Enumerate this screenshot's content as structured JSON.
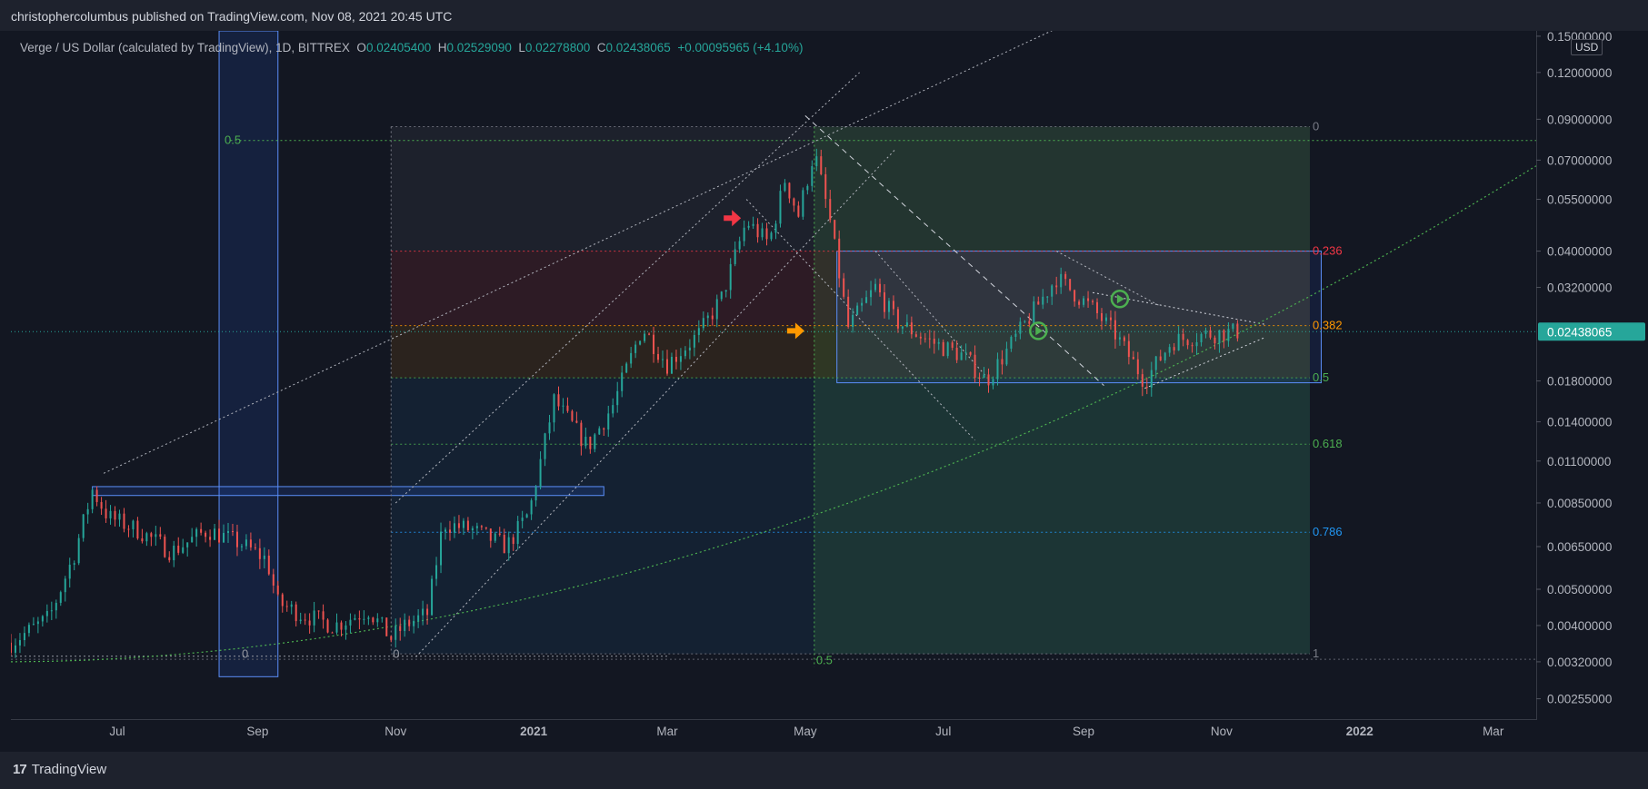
{
  "header": {
    "published": "christophercolumbus published on TradingView.com, Nov 08, 2021 20:45 UTC"
  },
  "legend": {
    "symbol": "Verge / US Dollar (calculated by TradingView), 1D, BITTREX",
    "open_label": "O",
    "open": "0.02405400",
    "high_label": "H",
    "high": "0.02529090",
    "low_label": "L",
    "low": "0.02278800",
    "close_label": "C",
    "close": "0.02438065",
    "change": "+0.00095965 (+4.10%)"
  },
  "currency_label": "USD",
  "footer": {
    "brand": "TradingView",
    "logo_mark": "17"
  },
  "colors": {
    "background": "#131722",
    "up": "#26a69a",
    "down": "#ef5350",
    "fib_green": "#4caf50",
    "fib_red": "#f23645",
    "fib_orange": "#ff9800",
    "fib_blue": "#2196f3",
    "box_blue": "#5b8ff9"
  },
  "chart_data": {
    "type": "candlestick",
    "scale": "log",
    "x_range": [
      "2020-05-15",
      "2022-03-20"
    ],
    "ylim": [
      0.00225,
      0.155
    ],
    "y_ticks": [
      "0.15000000",
      "0.12000000",
      "0.09000000",
      "0.07000000",
      "0.05500000",
      "0.04000000",
      "0.03200000",
      "0.02438065",
      "0.01800000",
      "0.01400000",
      "0.01100000",
      "0.00850000",
      "0.00650000",
      "0.00500000",
      "0.00400000",
      "0.00320000",
      "0.00255000"
    ],
    "y_tick_values": [
      0.15,
      0.12,
      0.09,
      0.07,
      0.055,
      0.04,
      0.032,
      0.02438065,
      0.018,
      0.014,
      0.011,
      0.0085,
      0.0065,
      0.005,
      0.004,
      0.0032,
      0.00255
    ],
    "x_ticks": [
      {
        "label": "Jul",
        "date": "2020-07-01",
        "bold": false
      },
      {
        "label": "Sep",
        "date": "2020-09-01",
        "bold": false
      },
      {
        "label": "Nov",
        "date": "2020-11-01",
        "bold": false
      },
      {
        "label": "2021",
        "date": "2021-01-01",
        "bold": true
      },
      {
        "label": "Mar",
        "date": "2021-03-01",
        "bold": false
      },
      {
        "label": "May",
        "date": "2021-05-01",
        "bold": false
      },
      {
        "label": "Jul",
        "date": "2021-07-01",
        "bold": false
      },
      {
        "label": "Sep",
        "date": "2021-09-01",
        "bold": false
      },
      {
        "label": "Nov",
        "date": "2021-11-01",
        "bold": false
      },
      {
        "label": "2022",
        "date": "2022-01-01",
        "bold": true
      },
      {
        "label": "Mar",
        "date": "2022-03-01",
        "bold": false
      }
    ],
    "last_price": "0.02438065",
    "price_path": [
      [
        "2020-05-15",
        0.0036
      ],
      [
        "2020-06-01",
        0.0042
      ],
      [
        "2020-06-12",
        0.0062
      ],
      [
        "2020-06-20",
        0.0092
      ],
      [
        "2020-06-27",
        0.0078
      ],
      [
        "2020-07-10",
        0.0072
      ],
      [
        "2020-07-25",
        0.0063
      ],
      [
        "2020-08-10",
        0.0072
      ],
      [
        "2020-08-25",
        0.0066
      ],
      [
        "2020-09-05",
        0.006
      ],
      [
        "2020-09-10",
        0.0046
      ],
      [
        "2020-09-20",
        0.0043
      ],
      [
        "2020-10-05",
        0.004
      ],
      [
        "2020-10-20",
        0.0044
      ],
      [
        "2020-10-30",
        0.0037
      ],
      [
        "2020-11-05",
        0.004
      ],
      [
        "2020-11-15",
        0.0043
      ],
      [
        "2020-11-22",
        0.0075
      ],
      [
        "2020-12-05",
        0.0072
      ],
      [
        "2020-12-20",
        0.0065
      ],
      [
        "2020-12-30",
        0.008
      ],
      [
        "2021-01-10",
        0.016
      ],
      [
        "2021-01-25",
        0.012
      ],
      [
        "2021-02-05",
        0.0155
      ],
      [
        "2021-02-18",
        0.025
      ],
      [
        "2021-03-01",
        0.02
      ],
      [
        "2021-03-15",
        0.024
      ],
      [
        "2021-03-25",
        0.03
      ],
      [
        "2021-04-05",
        0.048
      ],
      [
        "2021-04-15",
        0.042
      ],
      [
        "2021-04-22",
        0.062
      ],
      [
        "2021-04-28",
        0.05
      ],
      [
        "2021-05-05",
        0.074
      ],
      [
        "2021-05-12",
        0.048
      ],
      [
        "2021-05-20",
        0.025
      ],
      [
        "2021-06-01",
        0.032
      ],
      [
        "2021-06-10",
        0.026
      ],
      [
        "2021-06-25",
        0.023
      ],
      [
        "2021-07-10",
        0.021
      ],
      [
        "2021-07-20",
        0.018
      ],
      [
        "2021-08-05",
        0.025
      ],
      [
        "2021-08-20",
        0.034
      ],
      [
        "2021-09-05",
        0.028
      ],
      [
        "2021-09-15",
        0.024
      ],
      [
        "2021-09-28",
        0.018
      ],
      [
        "2021-10-10",
        0.023
      ],
      [
        "2021-10-25",
        0.024
      ],
      [
        "2021-11-08",
        0.02438
      ]
    ],
    "annotations": {
      "fib_levels_right": [
        {
          "label": "0",
          "value": 0.086
        },
        {
          "label": "0.236",
          "value": 0.04
        },
        {
          "label": "0.382",
          "value": 0.0253
        },
        {
          "label": "0.5",
          "value": 0.01835
        },
        {
          "label": "0.618",
          "value": 0.0122
        },
        {
          "label": "0.786",
          "value": 0.0071
        },
        {
          "label": "1",
          "value": 0.00336
        }
      ],
      "fib_levels_left": [
        {
          "label": "0.5",
          "value": 0.079
        },
        {
          "label": "0",
          "value": 0.00335
        }
      ],
      "fib_level_bottom": {
        "label": "0.5"
      }
    }
  }
}
